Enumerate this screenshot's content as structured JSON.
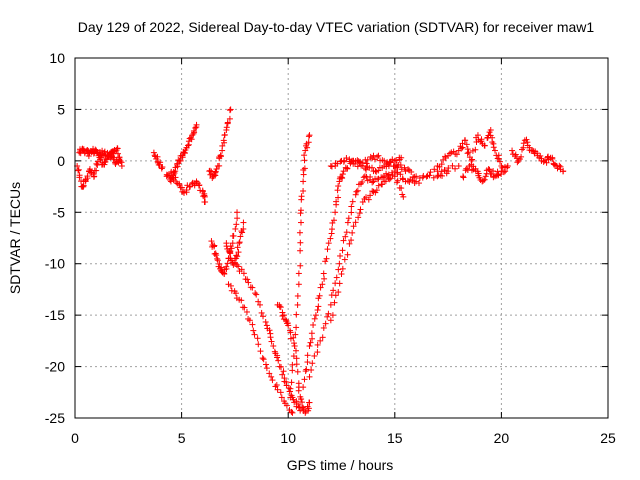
{
  "chart_data": {
    "type": "scatter",
    "title": "Day 129 of 2022, Sidereal Day-to-day VTEC variation (SDTVAR) for receiver maw1",
    "xlabel": "GPS time / hours",
    "ylabel": "SDTVAR / TECUs",
    "xlim": [
      0,
      25
    ],
    "ylim": [
      -25,
      10
    ],
    "xticks": [
      0,
      5,
      10,
      15,
      20,
      25
    ],
    "yticks": [
      -25,
      -20,
      -15,
      -10,
      -5,
      0,
      5,
      10
    ],
    "grid": true,
    "marker": "+",
    "series": [
      {
        "name": "SDTVAR",
        "color": "#ff0000",
        "segments": [
          [
            [
              0.1,
              -0.5
            ],
            [
              0.3,
              -2.5
            ],
            [
              0.5,
              -2.0
            ],
            [
              0.7,
              -0.8
            ],
            [
              0.9,
              -1.5
            ],
            [
              1.1,
              0.5
            ],
            [
              1.3,
              -0.2
            ],
            [
              1.5,
              0.2
            ],
            [
              1.7,
              0.8
            ],
            [
              1.9,
              -0.3
            ],
            [
              2.1,
              0.0
            ]
          ],
          [
            [
              0.2,
              0.8
            ],
            [
              0.4,
              1.0
            ],
            [
              0.6,
              0.7
            ],
            [
              0.8,
              0.9
            ],
            [
              1.0,
              1.0
            ],
            [
              1.2,
              0.6
            ],
            [
              1.4,
              0.9
            ],
            [
              1.6,
              0.4
            ],
            [
              1.8,
              0.7
            ],
            [
              2.0,
              1.2
            ],
            [
              2.2,
              -0.5
            ]
          ],
          [
            [
              3.7,
              0.8
            ],
            [
              3.9,
              -0.2
            ],
            [
              4.1,
              -0.6
            ]
          ],
          [
            [
              4.3,
              -1.5
            ],
            [
              4.5,
              -2.0
            ],
            [
              4.7,
              -1.0
            ],
            [
              4.9,
              0.0
            ],
            [
              5.1,
              0.8
            ],
            [
              5.3,
              1.5
            ],
            [
              5.5,
              2.5
            ],
            [
              5.7,
              3.5
            ]
          ],
          [
            [
              4.5,
              -1.2
            ],
            [
              4.8,
              -2.2
            ],
            [
              5.1,
              -3.0
            ],
            [
              5.4,
              -2.5
            ],
            [
              5.7,
              -2.0
            ],
            [
              6.0,
              -3.0
            ],
            [
              6.1,
              -4.0
            ]
          ],
          [
            [
              6.3,
              -1.0
            ],
            [
              6.5,
              -1.5
            ],
            [
              6.7,
              -0.5
            ],
            [
              6.9,
              1.0
            ],
            [
              7.1,
              3.0
            ],
            [
              7.3,
              5.0
            ]
          ],
          [
            [
              6.4,
              -7.8
            ],
            [
              6.6,
              -9.0
            ],
            [
              6.8,
              -10.5
            ],
            [
              7.0,
              -11.0
            ],
            [
              7.2,
              -9.5
            ],
            [
              7.4,
              -8.0
            ],
            [
              7.6,
              -5.0
            ]
          ],
          [
            [
              7.1,
              -8.0
            ],
            [
              7.3,
              -9.5
            ],
            [
              7.5,
              -10.0
            ],
            [
              7.7,
              -8.0
            ],
            [
              7.9,
              -6.0
            ]
          ],
          [
            [
              7.5,
              -9.5
            ],
            [
              8.0,
              -11.5
            ],
            [
              8.5,
              -13.0
            ],
            [
              9.0,
              -16.0
            ],
            [
              9.3,
              -18.0
            ],
            [
              9.6,
              -20.0
            ],
            [
              9.9,
              -21.5
            ],
            [
              10.2,
              -23.0
            ],
            [
              10.5,
              -24.0
            ],
            [
              10.8,
              -24.5
            ],
            [
              11.0,
              -23.5
            ]
          ],
          [
            [
              7.2,
              -12.0
            ],
            [
              7.7,
              -13.5
            ],
            [
              8.2,
              -15.5
            ],
            [
              8.7,
              -18.5
            ],
            [
              9.2,
              -21.0
            ],
            [
              9.7,
              -23.0
            ],
            [
              10.2,
              -24.5
            ]
          ],
          [
            [
              9.5,
              -14.0
            ],
            [
              9.8,
              -15.0
            ],
            [
              10.0,
              -16.0
            ],
            [
              10.3,
              -18.0
            ],
            [
              10.5,
              -22.0
            ],
            [
              10.7,
              -24.0
            ]
          ],
          [
            [
              10.1,
              -23.0
            ],
            [
              10.3,
              -18.0
            ],
            [
              10.5,
              -12.0
            ],
            [
              10.6,
              -6.0
            ],
            [
              10.7,
              -2.0
            ],
            [
              10.8,
              1.0
            ],
            [
              11.0,
              2.5
            ]
          ],
          [
            [
              10.7,
              -22.0
            ],
            [
              11.0,
              -18.0
            ],
            [
              11.3,
              -15.0
            ],
            [
              11.6,
              -12.0
            ],
            [
              11.9,
              -8.0
            ],
            [
              12.2,
              -5.0
            ],
            [
              12.4,
              -2.0
            ],
            [
              12.6,
              -1.0
            ],
            [
              13.0,
              0.0
            ],
            [
              13.5,
              -0.5
            ],
            [
              14.0,
              -1.0
            ],
            [
              14.5,
              -0.5
            ],
            [
              15.0,
              0.0
            ],
            [
              15.5,
              -1.0
            ],
            [
              16.0,
              -1.5
            ],
            [
              17.0,
              -1.0
            ],
            [
              18.0,
              -0.5
            ]
          ],
          [
            [
              11.0,
              -21.0
            ],
            [
              11.5,
              -17.5
            ],
            [
              12.0,
              -14.0
            ],
            [
              12.4,
              -10.0
            ],
            [
              12.8,
              -6.0
            ],
            [
              13.2,
              -3.0
            ],
            [
              13.6,
              -1.5
            ],
            [
              14.0,
              -2.0
            ],
            [
              14.5,
              -1.5
            ],
            [
              15.0,
              -1.0
            ],
            [
              15.5,
              -2.0
            ],
            [
              16.0,
              -2.0
            ],
            [
              17.0,
              -1.5
            ],
            [
              17.5,
              -1.0
            ]
          ],
          [
            [
              12.0,
              -15.5
            ],
            [
              12.5,
              -11.0
            ],
            [
              13.0,
              -7.0
            ],
            [
              13.5,
              -4.0
            ],
            [
              14.0,
              -3.0
            ],
            [
              14.5,
              -2.0
            ],
            [
              15.0,
              -1.5
            ],
            [
              15.4,
              -3.5
            ]
          ],
          [
            [
              12.0,
              -0.5
            ],
            [
              12.5,
              0.0
            ],
            [
              13.0,
              0.0
            ],
            [
              13.5,
              -0.2
            ],
            [
              14.0,
              0.5
            ],
            [
              14.5,
              0.0
            ],
            [
              15.0,
              -0.5
            ],
            [
              15.3,
              0.3
            ]
          ],
          [
            [
              17.0,
              -0.5
            ],
            [
              17.5,
              0.5
            ],
            [
              18.0,
              1.0
            ],
            [
              18.3,
              2.0
            ],
            [
              18.6,
              0.0
            ],
            [
              18.9,
              2.5
            ],
            [
              19.2,
              1.5
            ],
            [
              19.5,
              3.0
            ],
            [
              19.7,
              1.0
            ],
            [
              20.0,
              -0.5
            ]
          ],
          [
            [
              18.2,
              -1.5
            ],
            [
              18.5,
              -0.5
            ],
            [
              18.8,
              -1.0
            ],
            [
              19.1,
              -2.0
            ],
            [
              19.4,
              -0.8
            ],
            [
              19.7,
              -1.5
            ],
            [
              20.0,
              -1.0
            ],
            [
              20.3,
              -0.5
            ]
          ],
          [
            [
              20.5,
              1.0
            ],
            [
              20.8,
              0.0
            ],
            [
              21.1,
              2.0
            ],
            [
              21.4,
              1.0
            ],
            [
              21.7,
              0.5
            ],
            [
              22.0,
              0.0
            ],
            [
              22.3,
              0.3
            ],
            [
              22.6,
              -0.5
            ],
            [
              22.9,
              -1.0
            ]
          ]
        ]
      }
    ]
  }
}
